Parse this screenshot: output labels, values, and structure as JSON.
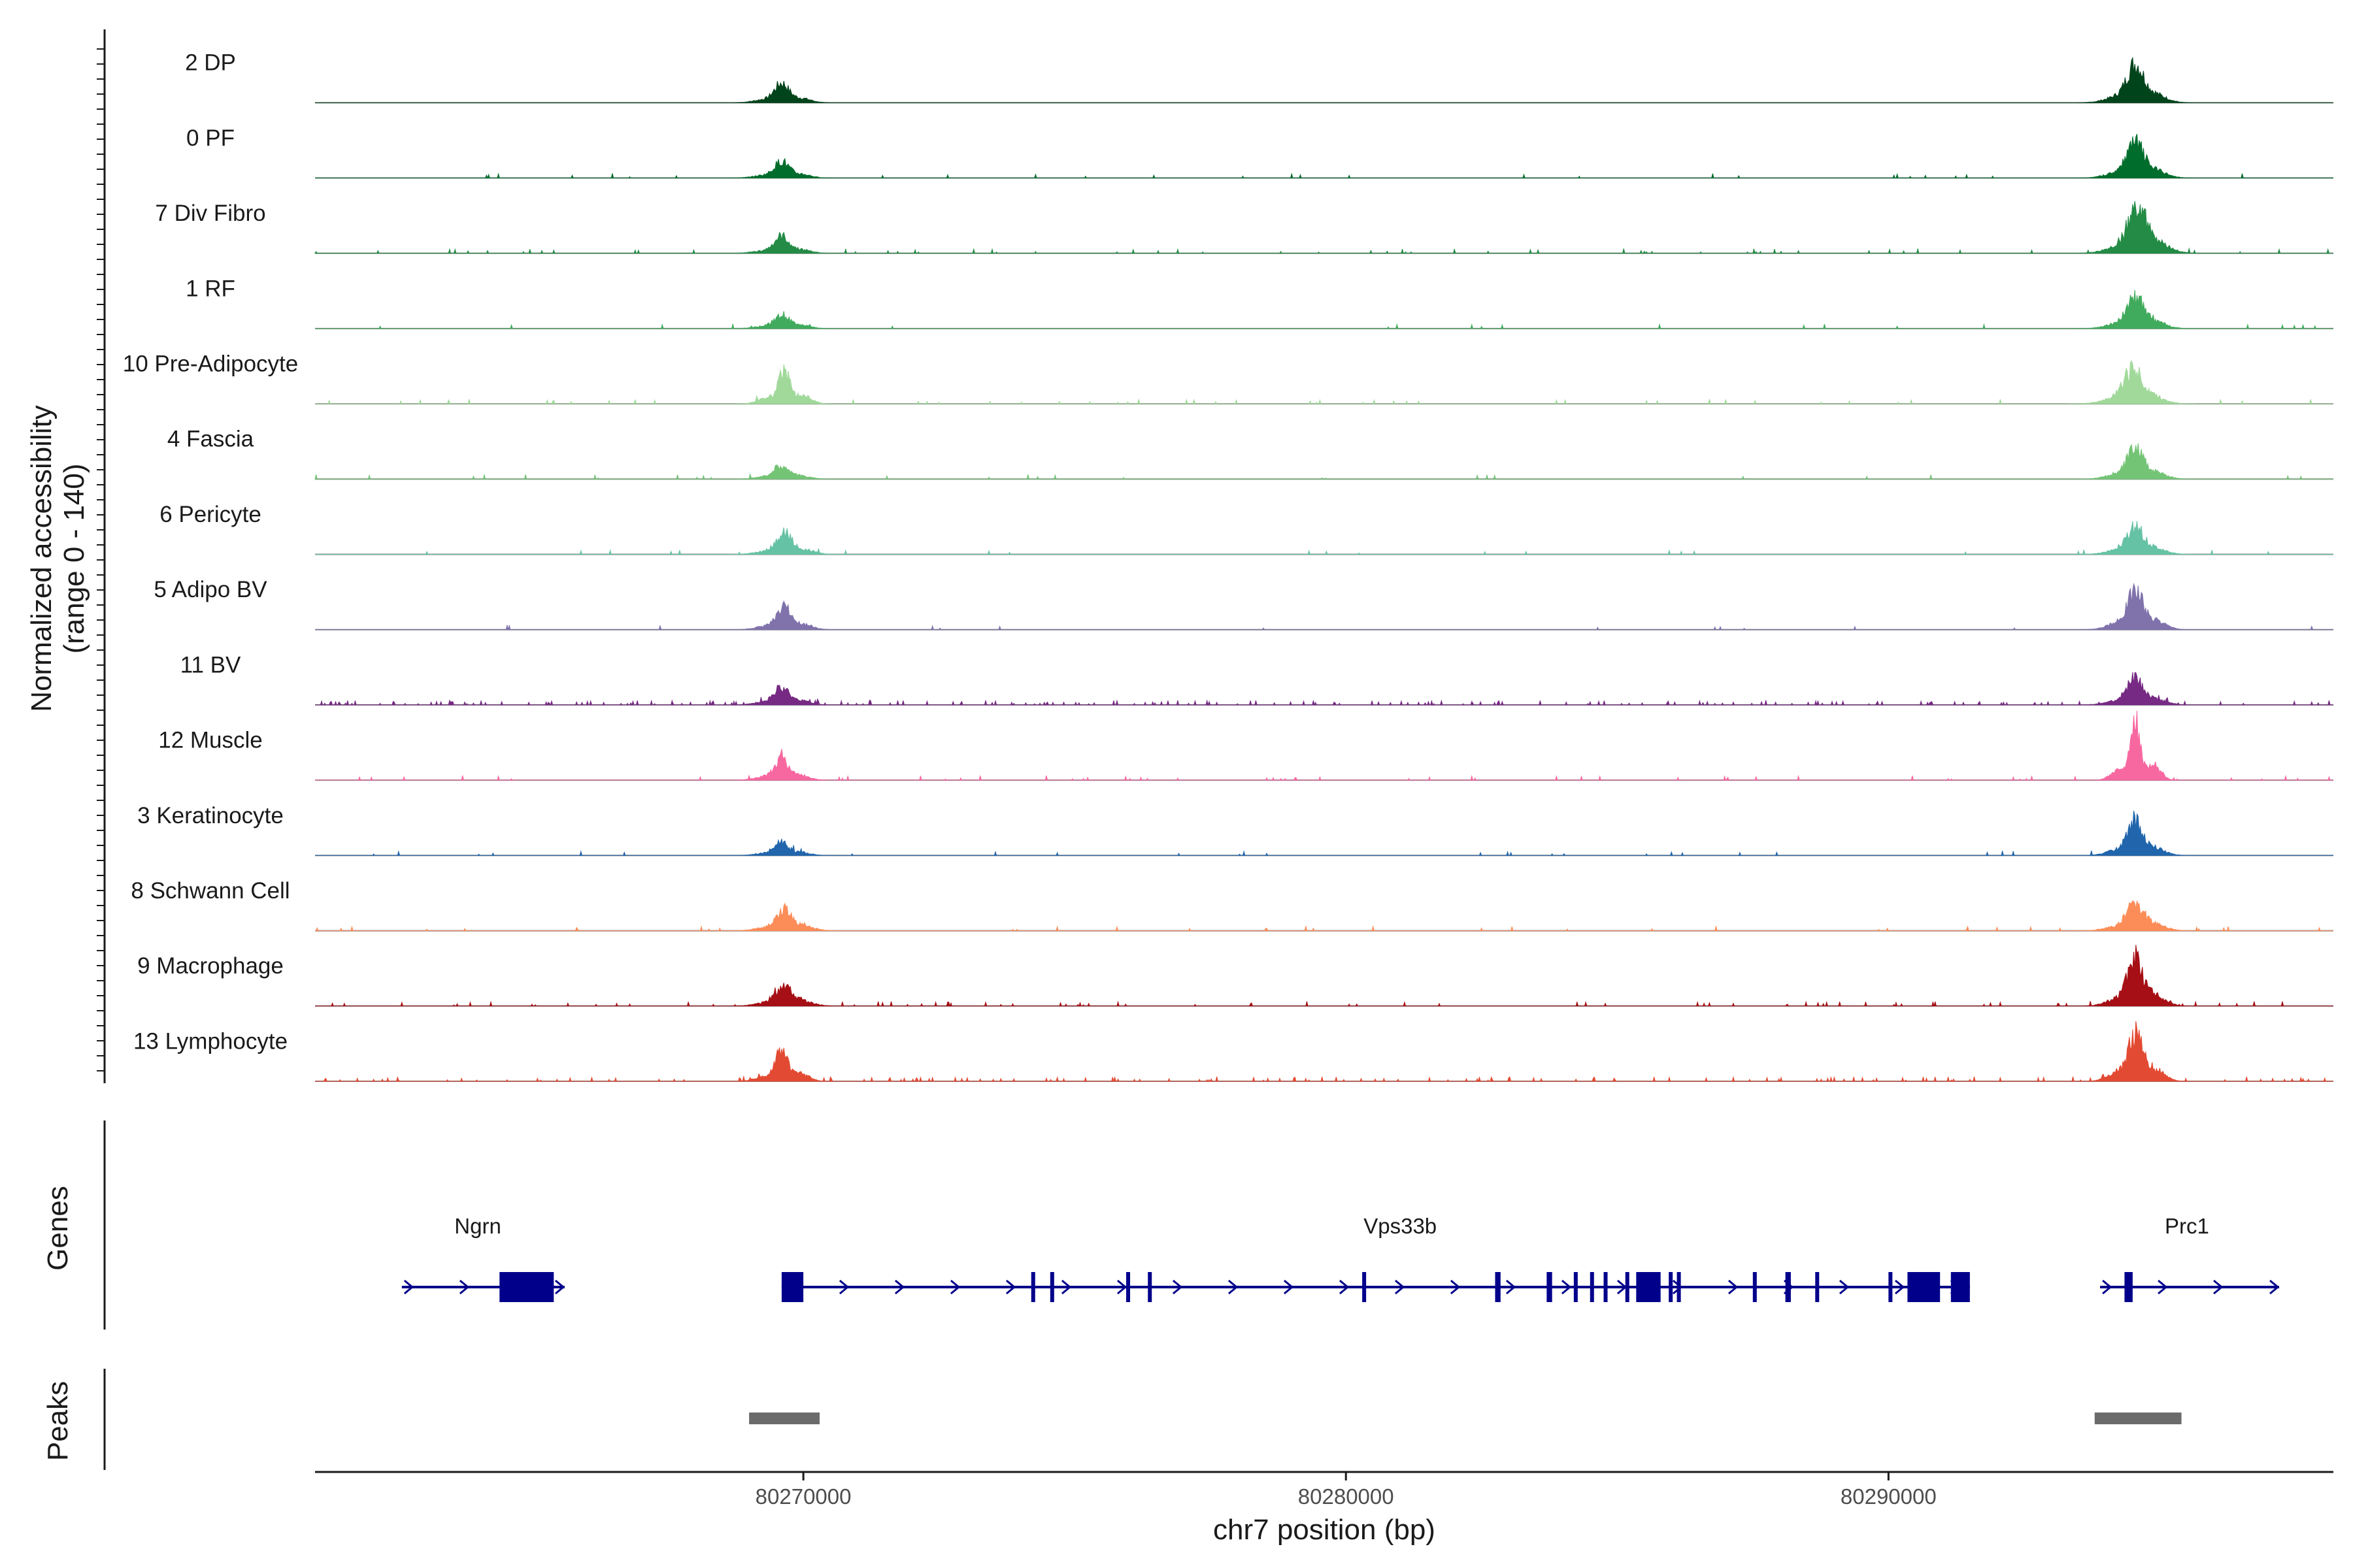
{
  "chart_data": {
    "type": "area",
    "title": "",
    "ylabel": "Normalized accessibility",
    "ylabel_sub": "(range 0 - 140)",
    "xlabel": "chr7 position (bp)",
    "ylim": [
      0,
      140
    ],
    "xlim": [
      80261000,
      80298200
    ],
    "xticks": [
      80270000,
      80280000,
      80290000
    ],
    "xtick_labels": [
      "80270000",
      "80280000",
      "80290000"
    ],
    "tracks": [
      {
        "name": "2 DP",
        "color": "#00441b",
        "peaks": [
          [
            80269600,
            30,
            130
          ],
          [
            80294550,
            58,
            150
          ]
        ],
        "noise": 0.0
      },
      {
        "name": "0 PF",
        "color": "#006d2c",
        "peaks": [
          [
            80269600,
            26,
            130
          ],
          [
            80294550,
            52,
            150
          ]
        ],
        "noise": 0.01
      },
      {
        "name": "7 Div Fibro",
        "color": "#238b45",
        "peaks": [
          [
            80269600,
            26,
            130
          ],
          [
            80294600,
            66,
            170
          ]
        ],
        "noise": 0.04
      },
      {
        "name": "1 RF",
        "color": "#41ab5d",
        "peaks": [
          [
            80269600,
            22,
            130
          ],
          [
            80294550,
            46,
            150
          ]
        ],
        "noise": 0.02
      },
      {
        "name": "10 Pre-Adipocyte",
        "color": "#a1d99b",
        "peaks": [
          [
            80269650,
            52,
            110
          ],
          [
            80294500,
            52,
            160
          ]
        ],
        "noise": 0.03
      },
      {
        "name": "4 Fascia",
        "color": "#74c476",
        "peaks": [
          [
            80269600,
            22,
            130
          ],
          [
            80294550,
            44,
            150
          ]
        ],
        "noise": 0.01
      },
      {
        "name": "6 Pericyte",
        "color": "#66c2a5",
        "peaks": [
          [
            80269650,
            32,
            140
          ],
          [
            80294550,
            40,
            150
          ]
        ],
        "noise": 0.01
      },
      {
        "name": "5 Adipo BV",
        "color": "#8073ac",
        "peaks": [
          [
            80269650,
            34,
            130
          ],
          [
            80294550,
            60,
            140
          ]
        ],
        "noise": 0.01
      },
      {
        "name": "11 BV",
        "color": "#762a83",
        "peaks": [
          [
            80269600,
            28,
            130
          ],
          [
            80294550,
            38,
            150
          ]
        ],
        "noise": 0.12
      },
      {
        "name": "12 Muscle",
        "color": "#f768a1",
        "peaks": [
          [
            80269600,
            34,
            120
          ],
          [
            80294550,
            100,
            90
          ]
        ],
        "noise": 0.03
      },
      {
        "name": "3 Keratinocyte",
        "color": "#2166ac",
        "peaks": [
          [
            80269600,
            22,
            120
          ],
          [
            80294550,
            50,
            140
          ]
        ],
        "noise": 0.02
      },
      {
        "name": "8 Schwann Cell",
        "color": "#fc8d59",
        "peaks": [
          [
            80269650,
            32,
            140
          ],
          [
            80294550,
            42,
            150
          ]
        ],
        "noise": 0.02
      },
      {
        "name": "9 Macrophage",
        "color": "#a50f15",
        "peaks": [
          [
            80269650,
            32,
            140
          ],
          [
            80294550,
            70,
            140
          ]
        ],
        "noise": 0.05
      },
      {
        "name": "13 Lymphocyte",
        "color": "#e34a33",
        "peaks": [
          [
            80269600,
            50,
            110
          ],
          [
            80294550,
            74,
            130
          ]
        ],
        "noise": 0.08
      }
    ],
    "genes_label": "Genes",
    "genes": [
      {
        "name": "Ngrn",
        "start": 80262600,
        "end": 80265600,
        "exons": [
          [
            80264400,
            80265400
          ]
        ],
        "label_x": 80264000
      },
      {
        "name": "Vps33b",
        "start": 80269600,
        "end": 80291500,
        "exons": [
          [
            80269600,
            80270000
          ],
          [
            80274200,
            80274250
          ],
          [
            80274550,
            80274600
          ],
          [
            80275950,
            80276000
          ],
          [
            80276350,
            80276400
          ],
          [
            80280300,
            80280350
          ],
          [
            80282750,
            80282850
          ],
          [
            80283700,
            80283800
          ],
          [
            80284200,
            80284250
          ],
          [
            80284500,
            80284550
          ],
          [
            80284750,
            80284800
          ],
          [
            80285150,
            80285200
          ],
          [
            80285350,
            80285800
          ],
          [
            80285950,
            80286000
          ],
          [
            80286100,
            80286150
          ],
          [
            80287500,
            80287550
          ],
          [
            80288100,
            80288200
          ],
          [
            80288650,
            80288700
          ],
          [
            80290000,
            80290050
          ],
          [
            80290350,
            80290950
          ],
          [
            80291150,
            80291500
          ]
        ],
        "label_x": 80281000
      },
      {
        "name": "Prc1",
        "start": 80293900,
        "end": 80297200,
        "exons": [
          [
            80294350,
            80294500
          ]
        ],
        "label_x": 80295500
      }
    ],
    "peaks_label": "Peaks",
    "peak_regions": [
      [
        80269000,
        80270300
      ],
      [
        80293800,
        80295400
      ]
    ],
    "peak_color": "#6b6b6b",
    "gene_color": "#00008b"
  }
}
